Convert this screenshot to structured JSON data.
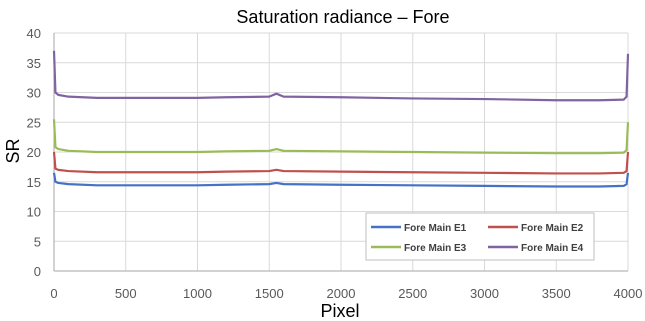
{
  "chart_data": {
    "type": "line",
    "title": "Saturation radiance – Fore",
    "xlabel": "Pixel",
    "ylabel": "SR",
    "xlim": [
      0,
      4000
    ],
    "ylim": [
      0,
      40
    ],
    "x_ticks": [
      0,
      500,
      1000,
      1500,
      2000,
      2500,
      3000,
      3500,
      4000
    ],
    "y_ticks": [
      0,
      5,
      10,
      15,
      20,
      25,
      30,
      35,
      40
    ],
    "grid": true,
    "legend_position": "bottom-right",
    "series": [
      {
        "name": "Fore Main E1",
        "color": "#4472C4",
        "points": [
          [
            0,
            16.5
          ],
          [
            10,
            15.0
          ],
          [
            30,
            14.8
          ],
          [
            100,
            14.6
          ],
          [
            300,
            14.4
          ],
          [
            500,
            14.4
          ],
          [
            800,
            14.4
          ],
          [
            1000,
            14.4
          ],
          [
            1200,
            14.5
          ],
          [
            1500,
            14.6
          ],
          [
            1550,
            14.8
          ],
          [
            1600,
            14.6
          ],
          [
            2000,
            14.5
          ],
          [
            2500,
            14.4
          ],
          [
            3000,
            14.3
          ],
          [
            3500,
            14.2
          ],
          [
            3800,
            14.2
          ],
          [
            3970,
            14.3
          ],
          [
            3990,
            14.6
          ],
          [
            4000,
            16.5
          ]
        ]
      },
      {
        "name": "Fore Main E2",
        "color": "#C0504D",
        "points": [
          [
            0,
            20.0
          ],
          [
            10,
            17.2
          ],
          [
            30,
            17.0
          ],
          [
            100,
            16.8
          ],
          [
            300,
            16.6
          ],
          [
            500,
            16.6
          ],
          [
            800,
            16.6
          ],
          [
            1000,
            16.6
          ],
          [
            1200,
            16.7
          ],
          [
            1500,
            16.8
          ],
          [
            1550,
            17.0
          ],
          [
            1600,
            16.8
          ],
          [
            2000,
            16.7
          ],
          [
            2500,
            16.6
          ],
          [
            3000,
            16.5
          ],
          [
            3500,
            16.4
          ],
          [
            3800,
            16.4
          ],
          [
            3970,
            16.5
          ],
          [
            3990,
            16.8
          ],
          [
            4000,
            20.0
          ]
        ]
      },
      {
        "name": "Fore Main E3",
        "color": "#9BBB59",
        "points": [
          [
            0,
            25.5
          ],
          [
            10,
            20.8
          ],
          [
            30,
            20.5
          ],
          [
            100,
            20.2
          ],
          [
            300,
            20.0
          ],
          [
            500,
            20.0
          ],
          [
            800,
            20.0
          ],
          [
            1000,
            20.0
          ],
          [
            1200,
            20.1
          ],
          [
            1500,
            20.2
          ],
          [
            1550,
            20.5
          ],
          [
            1600,
            20.2
          ],
          [
            2000,
            20.1
          ],
          [
            2500,
            20.0
          ],
          [
            3000,
            19.9
          ],
          [
            3500,
            19.8
          ],
          [
            3800,
            19.8
          ],
          [
            3970,
            19.9
          ],
          [
            3990,
            20.3
          ],
          [
            4000,
            25.0
          ]
        ]
      },
      {
        "name": "Fore Main E4",
        "color": "#8064A2",
        "points": [
          [
            0,
            37.0
          ],
          [
            10,
            30.0
          ],
          [
            30,
            29.6
          ],
          [
            100,
            29.3
          ],
          [
            300,
            29.1
          ],
          [
            500,
            29.1
          ],
          [
            800,
            29.1
          ],
          [
            1000,
            29.1
          ],
          [
            1200,
            29.2
          ],
          [
            1500,
            29.3
          ],
          [
            1550,
            29.8
          ],
          [
            1600,
            29.3
          ],
          [
            2000,
            29.2
          ],
          [
            2500,
            29.0
          ],
          [
            3000,
            28.9
          ],
          [
            3500,
            28.7
          ],
          [
            3800,
            28.7
          ],
          [
            3970,
            28.8
          ],
          [
            3990,
            29.3
          ],
          [
            4000,
            36.5
          ]
        ]
      }
    ]
  }
}
